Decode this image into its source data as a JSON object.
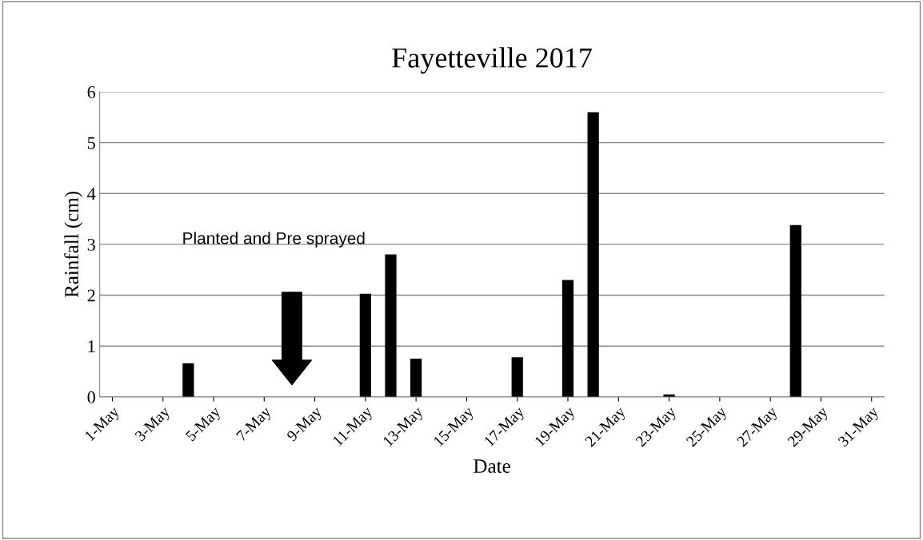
{
  "chart_data": {
    "type": "bar",
    "title": "Fayetteville 2017",
    "xlabel": "Date",
    "ylabel": "Rainfall (cm)",
    "categories": [
      "1-May",
      null,
      "3-May",
      null,
      "5-May",
      null,
      "7-May",
      null,
      "9-May",
      null,
      "11-May",
      null,
      "13-May",
      null,
      "15-May",
      null,
      "17-May",
      null,
      "19-May",
      null,
      "21-May",
      null,
      "23-May",
      null,
      "25-May",
      null,
      "27-May",
      null,
      "29-May",
      null,
      "31-May"
    ],
    "values": [
      0,
      0,
      0,
      0.66,
      0,
      0,
      0,
      0,
      0,
      0,
      2.03,
      2.8,
      0.75,
      0,
      0,
      0,
      0.78,
      0,
      2.3,
      5.6,
      0,
      0,
      0.05,
      0,
      0,
      0,
      0,
      3.38,
      0,
      0,
      0
    ],
    "color": "#000000",
    "ylim": [
      0,
      6
    ],
    "yticks": [
      0,
      1,
      2,
      3,
      4,
      5,
      6
    ],
    "grid": "y",
    "annotations": [
      "Planted and Pre sprayed"
    ]
  }
}
